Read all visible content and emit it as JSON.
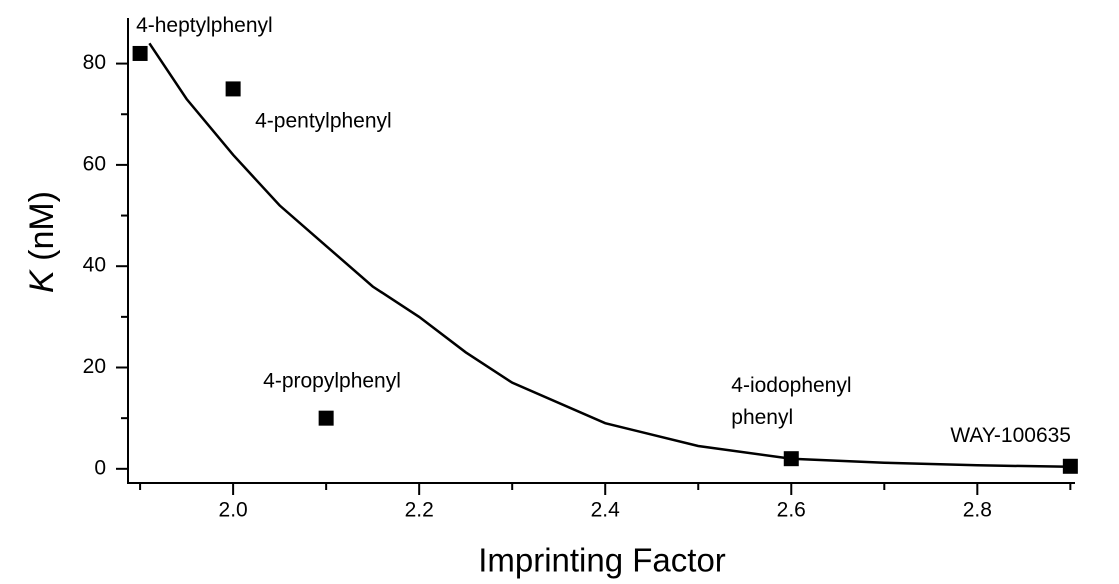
{
  "chart_data": {
    "type": "scatter",
    "xlabel": "Imprinting Factor",
    "ylabel_symbol": "K",
    "ylabel_unit": "(nM)",
    "xlim": [
      1.887,
      2.905
    ],
    "ylim": [
      -2.8,
      89
    ],
    "xticks": [
      {
        "value": 2,
        "label": "2.0"
      },
      {
        "value": 2.2,
        "label": "2.2"
      },
      {
        "value": 2.4,
        "label": "2.4"
      },
      {
        "value": 2.6,
        "label": "2.6"
      },
      {
        "value": 2.8,
        "label": "2.8"
      }
    ],
    "xminorticks": [
      1.9,
      2.1,
      2.3,
      2.5,
      2.7,
      2.9
    ],
    "yticks": [
      0,
      20,
      40,
      60,
      80
    ],
    "yminorticks": [
      10,
      30,
      50,
      70
    ],
    "color": "#000000",
    "points": {
      "x": [
        1.9,
        2.0,
        2.1,
        2.6,
        2.9
      ],
      "values": [
        82,
        75,
        10,
        2,
        0.5
      ],
      "labels": [
        [
          "4-heptylphenyl"
        ],
        [
          "4-pentylphenyl"
        ],
        [
          "4-propylphenyl"
        ],
        [
          "4-iodophenyl",
          "phenyl"
        ],
        [
          "WAY-100635"
        ]
      ]
    },
    "fit": {
      "x": [
        1.91,
        1.95,
        2.0,
        2.05,
        2.1,
        2.15,
        2.2,
        2.25,
        2.3,
        2.4,
        2.5,
        2.6,
        2.7,
        2.8,
        2.9
      ],
      "values": [
        84,
        73,
        62,
        52,
        44,
        36,
        30,
        23,
        17,
        9,
        4.5,
        2,
        1.2,
        0.7,
        0.4
      ]
    }
  }
}
